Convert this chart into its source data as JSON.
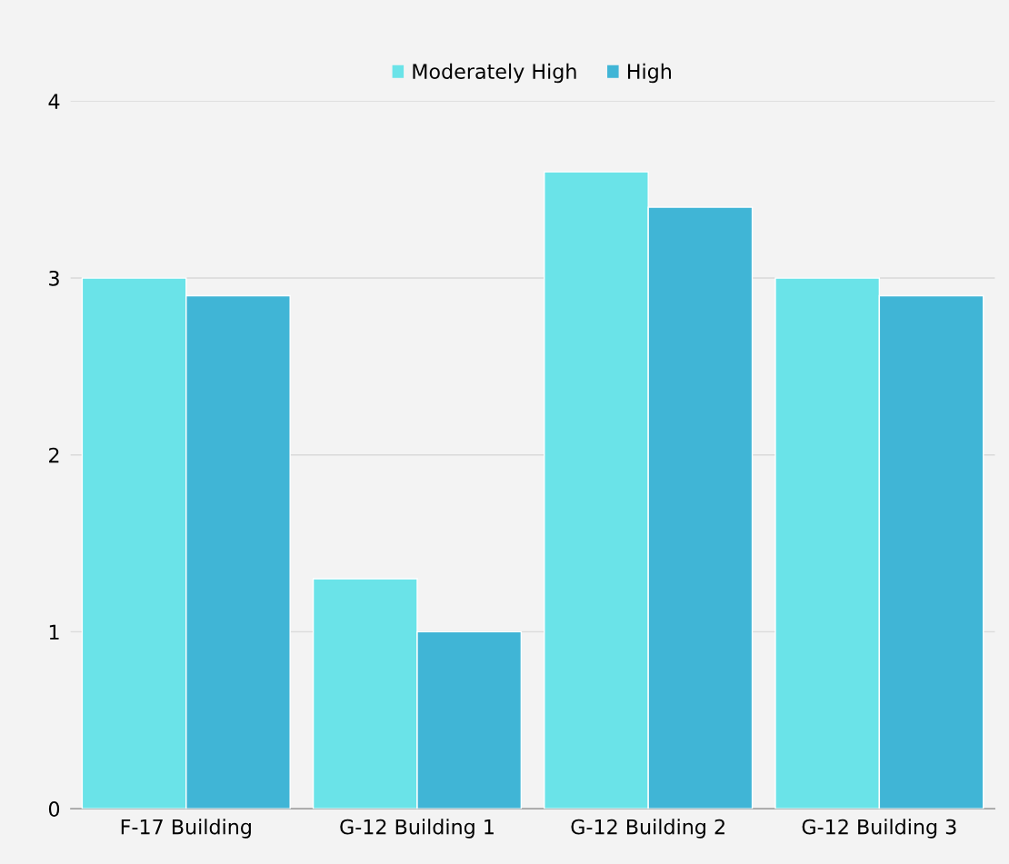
{
  "chart_data": {
    "type": "bar",
    "categories": [
      "F-17 Building",
      "G-12 Building 1",
      "G-12 Building 2",
      "G-12 Building 3"
    ],
    "series": [
      {
        "name": "Moderately High",
        "color": "#6ae3e8",
        "values": [
          3.0,
          1.3,
          3.6,
          3.0
        ]
      },
      {
        "name": "High",
        "color": "#40b5d6",
        "values": [
          2.9,
          1.0,
          3.4,
          2.9
        ]
      }
    ],
    "ylim": [
      0,
      4
    ],
    "yticks": [
      0,
      1,
      2,
      3,
      4
    ],
    "grid": "y",
    "legend": "top"
  }
}
